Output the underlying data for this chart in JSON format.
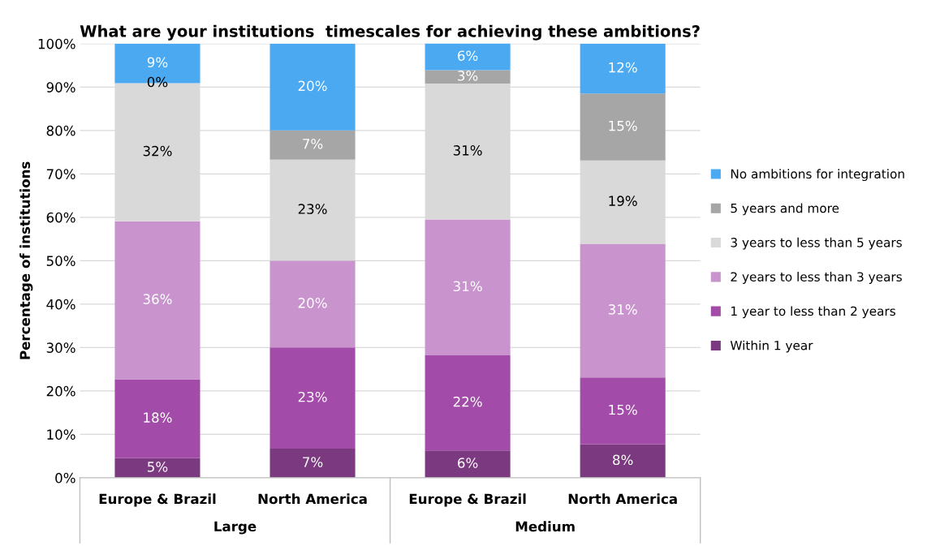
{
  "chart_data": {
    "type": "bar",
    "title": "What are your institutions  timescales for achieving these ambitions?",
    "ylabel": "Percentage of institutions",
    "categories": [
      "Europe & Brazil",
      "North America",
      "Europe & Brazil",
      "North America"
    ],
    "stacked": true,
    "ylim": [
      0,
      100
    ],
    "yticks": [
      {
        "value": 0,
        "label": "0%"
      },
      {
        "value": 10,
        "label": "10%"
      },
      {
        "value": 20,
        "label": "20%"
      },
      {
        "value": 30,
        "label": "30%"
      },
      {
        "value": 40,
        "label": "40%"
      },
      {
        "value": 50,
        "label": "50%"
      },
      {
        "value": 60,
        "label": "60%"
      },
      {
        "value": 70,
        "label": "70%"
      },
      {
        "value": 80,
        "label": "80%"
      },
      {
        "value": 90,
        "label": "90%"
      },
      {
        "value": 100,
        "label": "100%"
      }
    ],
    "grid": "y",
    "legend": "right",
    "annotations": [
      "Large",
      "Medium"
    ],
    "series": [
      {
        "name": "Within 1 year",
        "color": "#7b3a80",
        "values": [
          4.5,
          6.7,
          6.3,
          7.7
        ],
        "value_labels": [
          "5%",
          "7%",
          "6%",
          "8%"
        ]
      },
      {
        "name": "1 year to less than 2 years",
        "color": "#a24ba8",
        "values": [
          18.2,
          23.3,
          21.9,
          15.4
        ],
        "value_labels": [
          "18%",
          "23%",
          "22%",
          "15%"
        ]
      },
      {
        "name": "2 years to less than 3 years",
        "color": "#c994ce",
        "values": [
          36.4,
          20.0,
          31.3,
          30.8
        ],
        "value_labels": [
          "36%",
          "20%",
          "31%",
          "31%"
        ]
      },
      {
        "name": "3 years to less than 5 years",
        "color": "#d9d9d9",
        "values": [
          31.8,
          23.3,
          31.3,
          19.2
        ],
        "value_labels": [
          "32%",
          "23%",
          "31%",
          "19%"
        ]
      },
      {
        "name": "5 years and more",
        "color": "#a6a6a6",
        "values": [
          0,
          6.7,
          3.1,
          15.4
        ],
        "value_labels": [
          "0%",
          "7%",
          "3%",
          "15%"
        ]
      },
      {
        "name": "No ambitions for integration",
        "color": "#4aa9f1",
        "values": [
          9.1,
          20.0,
          6.2,
          11.5
        ],
        "value_labels": [
          "9%",
          "20%",
          "6%",
          "12%"
        ]
      }
    ]
  }
}
